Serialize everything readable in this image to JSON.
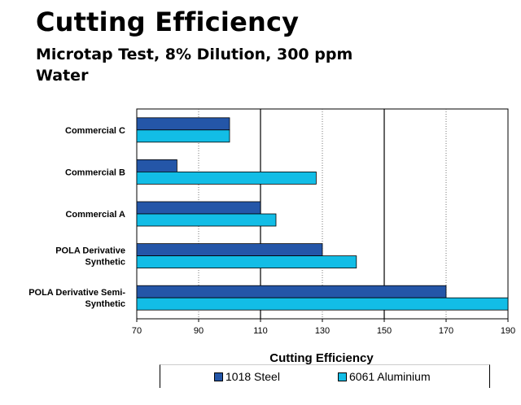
{
  "title": "Cutting Efficiency",
  "subtitle": "Microtap Test, 8% Dilution, 300 ppm Water",
  "chart_data": {
    "type": "bar",
    "orientation": "horizontal",
    "categories": [
      "Commercial C",
      "Commercial B",
      "Commercial A",
      "POLA Derivative Synthetic",
      "POLA Derivative Semi-Synthetic"
    ],
    "category_label_lines": [
      [
        "Commercial C"
      ],
      [
        "Commercial B"
      ],
      [
        "Commercial A"
      ],
      [
        "POLA Derivative",
        "Synthetic"
      ],
      [
        "POLA Derivative Semi-",
        "Synthetic"
      ]
    ],
    "series": [
      {
        "name": "1018 Steel",
        "values": [
          100,
          83,
          110,
          130,
          170
        ],
        "color": "#2456a8"
      },
      {
        "name": "6061 Aluminium",
        "values": [
          100,
          128,
          115,
          141,
          190
        ],
        "color": "#12bde6"
      }
    ],
    "xlabel": "Cutting Efficiency",
    "ylabel": "",
    "xlim": [
      70,
      190
    ],
    "xticks": [
      70,
      90,
      110,
      130,
      150,
      170,
      190
    ],
    "grid": "vertical",
    "legend_position": "bottom"
  }
}
